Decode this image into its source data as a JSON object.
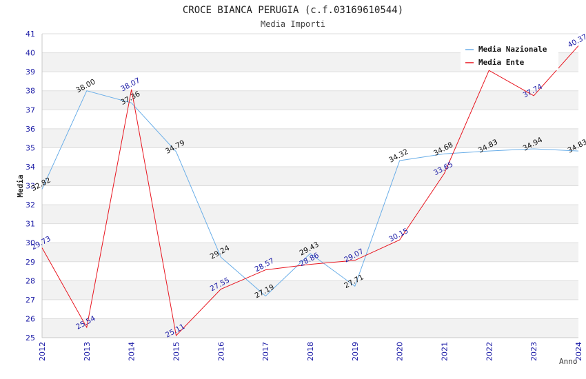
{
  "chart_data": {
    "type": "line",
    "title": "CROCE BIANCA PERUGIA (c.f.03169610544)",
    "subtitle": "Media Importi",
    "xlabel": "Anno",
    "ylabel": "Media",
    "ylim": [
      25,
      41
    ],
    "yticks": [
      "25",
      "26",
      "27",
      "28",
      "29",
      "30",
      "31",
      "32",
      "33",
      "34",
      "35",
      "36",
      "37",
      "38",
      "39",
      "40",
      "41"
    ],
    "categories": [
      "2012",
      "2013",
      "2014",
      "2015",
      "2016",
      "2017",
      "2018",
      "2019",
      "2020",
      "2021",
      "2022",
      "2023",
      "2024"
    ],
    "series": [
      {
        "name": "Media Nazionale",
        "color": "#6aaee8",
        "label_color": "#111111",
        "values": [
          32.82,
          38.0,
          37.36,
          34.79,
          29.24,
          27.19,
          29.43,
          27.71,
          34.32,
          34.68,
          34.83,
          34.94,
          34.83
        ],
        "labels": [
          "32.82",
          "38.00",
          "37.36",
          "34.79",
          "29.24",
          "27.19",
          "29.43",
          "27.71",
          "34.32",
          "34.68",
          "34.83",
          "34.94",
          "34.83"
        ]
      },
      {
        "name": "Media Ente",
        "color": "#e8141e",
        "label_color": "#1a1aa6",
        "values": [
          29.73,
          25.54,
          38.07,
          25.11,
          27.55,
          28.57,
          28.86,
          29.07,
          30.15,
          33.65,
          39.07,
          37.74,
          40.37
        ],
        "labels": [
          "29.73",
          "25.54",
          "38.07",
          "25.11",
          "27.55",
          "28.57",
          "28.86",
          "29.07",
          "30.15",
          "33.65",
          "",
          "37.74",
          "40.37"
        ]
      }
    ],
    "legend_position": "top-right",
    "grid": true,
    "band_colors": [
      "#f2f2f2",
      "#ffffff"
    ],
    "grid_color": "#dddddd"
  }
}
